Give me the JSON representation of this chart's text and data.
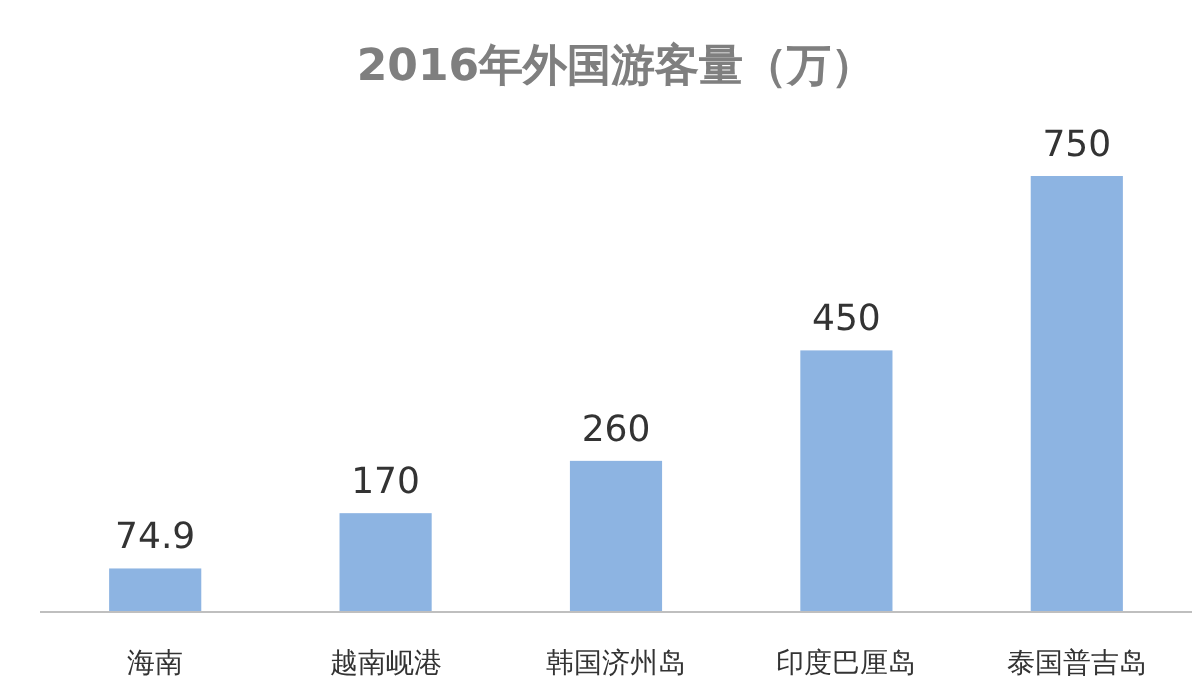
{
  "chart_data": {
    "type": "bar",
    "title": "2016年外国游客量（万）",
    "categories": [
      "海南",
      "越南岘港",
      "韩国济州岛",
      "印度巴厘岛",
      "泰国普吉岛"
    ],
    "values": [
      74.9,
      170,
      260,
      450,
      750
    ],
    "color": "#8db4e2",
    "data_labels": true
  }
}
